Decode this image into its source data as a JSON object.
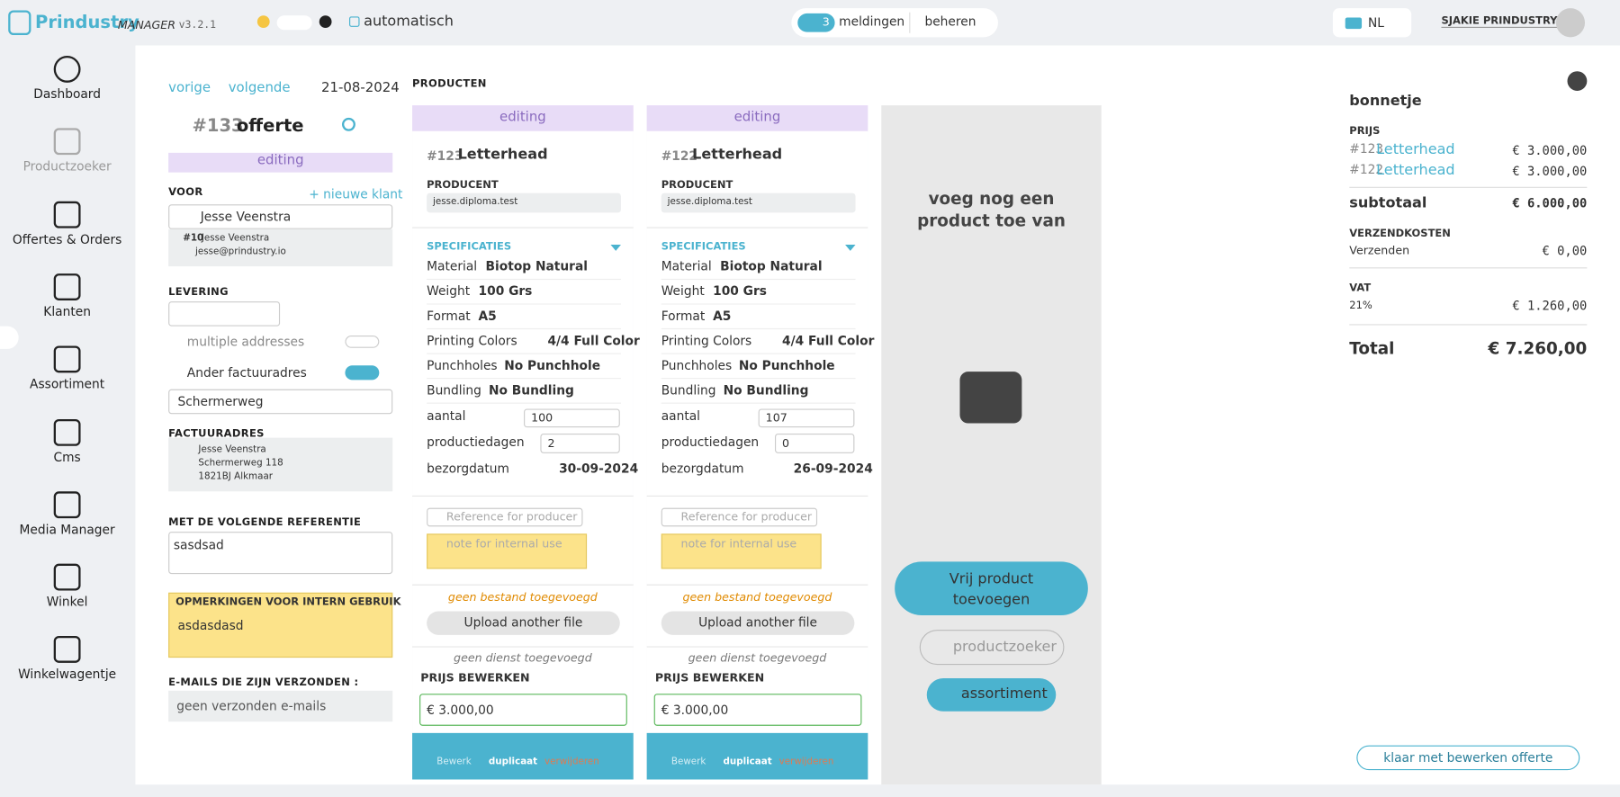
{
  "header": {
    "brand": "Prindustry",
    "brand_sub": "MANAGER",
    "version": "v3.2.1",
    "auto": "automatisch",
    "notif_count": "3",
    "notif_label": "meldingen",
    "manage": "beheren",
    "lang": "NL",
    "user": "SJAKIE PRINDUSTRY"
  },
  "sidebar": [
    "Dashboard",
    "Productzoeker",
    "Offertes & Orders",
    "Klanten",
    "Assortiment",
    "Cms",
    "Media Manager",
    "Winkel",
    "Winkelwagentje"
  ],
  "order": {
    "prev": "vorige",
    "next": "volgende",
    "date": "21-08-2024",
    "number": "#133",
    "title": "offerte",
    "status": "editing",
    "voor_label": "VOOR",
    "new_client": "+ nieuwe klant",
    "client": "Jesse Veenstra",
    "client_id": "#10",
    "client_name": "Jesse Veenstra",
    "client_email": "jesse@prindustry.io",
    "delivery_label": "LEVERING",
    "multiple": "multiple addresses",
    "other_invoice": "Ander factuuradres",
    "address_select": "Schermerweg",
    "invoice_label": "FACTUURADRES",
    "invoice_lines": [
      "Jesse Veenstra",
      "Schermerweg 118",
      "1821BJ Alkmaar"
    ],
    "reference_label": "MET DE VOLGENDE REFERENTIE",
    "reference": "sasdsad",
    "internal_label": "OPMERKINGEN VOOR INTERN GEBRUIK",
    "internal": "asdasdasd",
    "emails_label": "E-MAILS DIE ZIJN VERZONDEN :",
    "emails_none": "geen verzonden e-mails"
  },
  "products": {
    "heading": "PRODUCTEN",
    "items": [
      {
        "status": "editing",
        "number": "#123",
        "name": "Letterhead",
        "producer_label": "PRODUCENT",
        "producer": "jesse.diploma.test",
        "spec_label": "SPECIFICATIES",
        "specs": [
          [
            "Material",
            "Biotop Natural"
          ],
          [
            "Weight",
            "100 Grs"
          ],
          [
            "Format",
            "A5"
          ],
          [
            "Printing Colors",
            "4/4 Full Color"
          ],
          [
            "Punchholes",
            "No Punchhole"
          ],
          [
            "Bundling",
            "No Bundling"
          ]
        ],
        "amount_label": "aantal",
        "amount": 100,
        "days_label": "productiedagen",
        "days": 2,
        "delivery_label": "bezorgdatum",
        "delivery_date": "30-09-2024",
        "ref_placeholder": "Reference for producer",
        "note_placeholder": "note for internal use",
        "no_file": "geen bestand toegevoegd",
        "upload": "Upload another file",
        "no_service": "geen dienst toegevoegd",
        "price_label": "PRIJS BEWERKEN",
        "price": "€ 3.000,00",
        "actions": [
          "Bewerk",
          "duplicaat",
          "verwijderen"
        ]
      },
      {
        "status": "editing",
        "number": "#122",
        "name": "Letterhead",
        "producer_label": "PRODUCENT",
        "producer": "jesse.diploma.test",
        "spec_label": "SPECIFICATIES",
        "specs": [
          [
            "Material",
            "Biotop Natural"
          ],
          [
            "Weight",
            "100 Grs"
          ],
          [
            "Format",
            "A5"
          ],
          [
            "Printing Colors",
            "4/4 Full Color"
          ],
          [
            "Punchholes",
            "No Punchhole"
          ],
          [
            "Bundling",
            "No Bundling"
          ]
        ],
        "amount_label": "aantal",
        "amount": 107,
        "days_label": "productiedagen",
        "days": 0,
        "delivery_label": "bezorgdatum",
        "delivery_date": "26-09-2024",
        "ref_placeholder": "Reference for producer",
        "note_placeholder": "note for internal use",
        "no_file": "geen bestand toegevoegd",
        "upload": "Upload another file",
        "no_service": "geen dienst toegevoegd",
        "price_label": "PRIJS BEWERKEN",
        "price": "€ 3.000,00",
        "actions": [
          "Bewerk",
          "duplicaat",
          "verwijderen"
        ]
      }
    ],
    "add_text": "voeg nog een product toe van",
    "free_product": "Vrij product toevoegen",
    "product_finder": "productzoeker",
    "assortment": "assortiment"
  },
  "receipt": {
    "title": "bonnetje",
    "price_label": "PRIJS",
    "lines": [
      {
        "number": "#123",
        "name": "Letterhead",
        "price": "€ 3.000,00"
      },
      {
        "number": "#122",
        "name": "Letterhead",
        "price": "€ 3.000,00"
      }
    ],
    "subtotal_label": "subtotaal",
    "subtotal": "€ 6.000,00",
    "shipping_label": "VERZENDKOSTEN",
    "shipping_method": "Verzenden",
    "shipping_cost": "€ 0,00",
    "vat_label": "VAT",
    "vat_rate": "21%",
    "vat": "€ 1.260,00",
    "total_label": "Total",
    "total": "€ 7.260,00",
    "done": "klaar met bewerken offerte"
  }
}
